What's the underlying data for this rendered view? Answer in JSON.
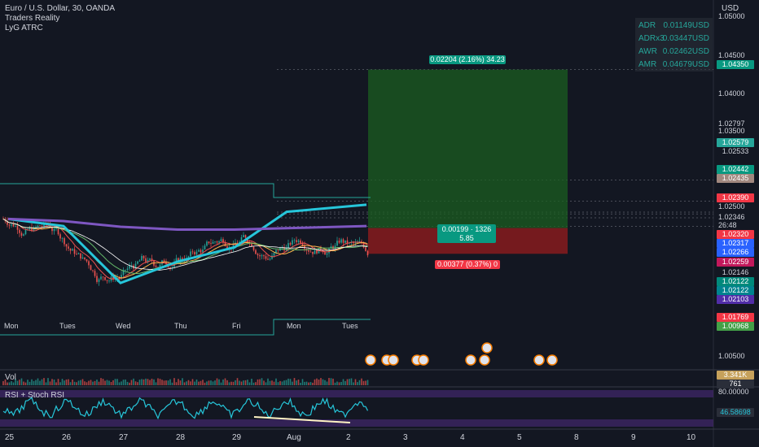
{
  "legend": {
    "symbol": "Euro / U.S. Dollar, 30, OANDA",
    "indicator1": "Traders Reality",
    "indicator2": "LyG ATRC"
  },
  "stats": [
    {
      "k": "ADR",
      "v": "0.01149USD"
    },
    {
      "k": "ADRx3",
      "v": "0.03447USD"
    },
    {
      "k": "AWR",
      "v": "0.02462USD"
    },
    {
      "k": "AMR",
      "v": "0.04679USD"
    }
  ],
  "currency": "USD",
  "price_axis": [
    "1.05000",
    "1.04500",
    "1.04000",
    "1.02797",
    "1.03500",
    "1.02500",
    "1.02346",
    "26:48",
    "1.00500"
  ],
  "price_tags": [
    {
      "text": "1.04350",
      "color": "#089981"
    },
    {
      "text": "1.02579",
      "color": "#26a69a"
    },
    {
      "text": "1.02533",
      "color": "#131722"
    },
    {
      "text": "1.02442",
      "color": "#089981"
    },
    {
      "text": "1.02435",
      "color": "#a1887f"
    },
    {
      "text": "1.02390",
      "color": "#f23645"
    },
    {
      "text": "1.02320",
      "color": "#f23645"
    },
    {
      "text": "1.02317",
      "color": "#2962ff"
    },
    {
      "text": "1.02266",
      "color": "#2962ff"
    },
    {
      "text": "1.02259",
      "color": "#c2185b"
    },
    {
      "text": "1.02146",
      "color": "#131722"
    },
    {
      "text": "1.02122",
      "color": "#00897b"
    },
    {
      "text": "1.02122",
      "color": "#00838f"
    },
    {
      "text": "1.02103",
      "color": "#512da8"
    },
    {
      "text": "1.01769",
      "color": "#f23645"
    },
    {
      "text": "1.00968",
      "color": "#43a047"
    }
  ],
  "time_labels": [
    "Mon",
    "Tues",
    "Wed",
    "Thu",
    "Fri",
    "Mon",
    "Tues"
  ],
  "date_labels": [
    "25",
    "26",
    "27",
    "28",
    "29",
    "Aug",
    "2",
    "3",
    "4",
    "5",
    "8",
    "9",
    "10"
  ],
  "position": {
    "target_label": "0.02204 (2.16%) 34.23",
    "entry_label_1": "0.00199 · 1326",
    "entry_label_2": "5.85",
    "stop_label": "0.00377 (0.37%) 0"
  },
  "volume": {
    "label": "Vol",
    "tag": "3.341K",
    "tag2": "761"
  },
  "rsi": {
    "label": "RSI + Stoch RSI",
    "upper_tag": "80.00000",
    "value_tag": "46.58698"
  },
  "colors": {
    "background": "#131722",
    "profit": "#1b5e20",
    "loss": "#b71c1c",
    "ema_cyan": "#26c6da",
    "ema_purple": "#7e57c2",
    "rsi_line": "#26c6da",
    "rsi_band": "#4a2a7a"
  },
  "chart_data": {
    "type": "line",
    "title": "Euro / U.S. Dollar, 30, OANDA",
    "xlabel": "",
    "ylabel": "USD",
    "ylim": [
      1.003,
      1.051
    ],
    "x": [
      "25",
      "26",
      "27",
      "28",
      "29",
      "Aug",
      "2"
    ],
    "series": [
      {
        "values": [
          1.0225,
          1.0215,
          1.0135,
          1.0165,
          1.0185,
          1.0235,
          1.0245
        ]
      },
      {
        "values": [
          1.0225,
          1.0222,
          1.0214,
          1.021,
          1.021,
          1.0212,
          1.0215
        ]
      }
    ],
    "position_box": {
      "target": 1.0435,
      "entry": 1.02122,
      "stop": 1.0176
    }
  }
}
